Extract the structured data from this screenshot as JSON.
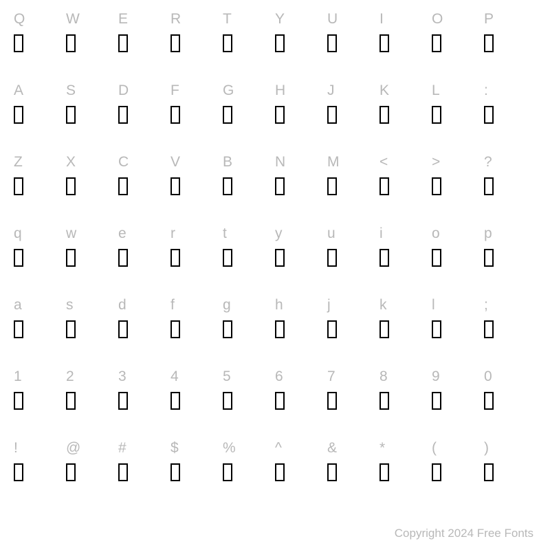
{
  "grid": {
    "columns": 10,
    "rows": [
      [
        "Q",
        "W",
        "E",
        "R",
        "T",
        "Y",
        "U",
        "I",
        "O",
        "P"
      ],
      [
        "A",
        "S",
        "D",
        "F",
        "G",
        "H",
        "J",
        "K",
        "L",
        ":"
      ],
      [
        "Z",
        "X",
        "C",
        "V",
        "B",
        "N",
        "M",
        "<",
        ">",
        "?"
      ],
      [
        "q",
        "w",
        "e",
        "r",
        "t",
        "y",
        "u",
        "i",
        "o",
        "p"
      ],
      [
        "a",
        "s",
        "d",
        "f",
        "g",
        "h",
        "j",
        "k",
        "l",
        ";"
      ],
      [
        "1",
        "2",
        "3",
        "4",
        "5",
        "6",
        "7",
        "8",
        "9",
        "0"
      ],
      [
        "!",
        "@",
        "#",
        "$",
        "%",
        "^",
        "&",
        "*",
        "(",
        ")"
      ]
    ],
    "label_color": "#b8b8b8",
    "label_fontsize": 21,
    "glyph_box": {
      "width": 14,
      "height": 26,
      "border_color": "#000000",
      "border_width": 2,
      "fill": "#ffffff"
    },
    "background_color": "#ffffff"
  },
  "copyright": "Copyright 2024 Free Fonts"
}
